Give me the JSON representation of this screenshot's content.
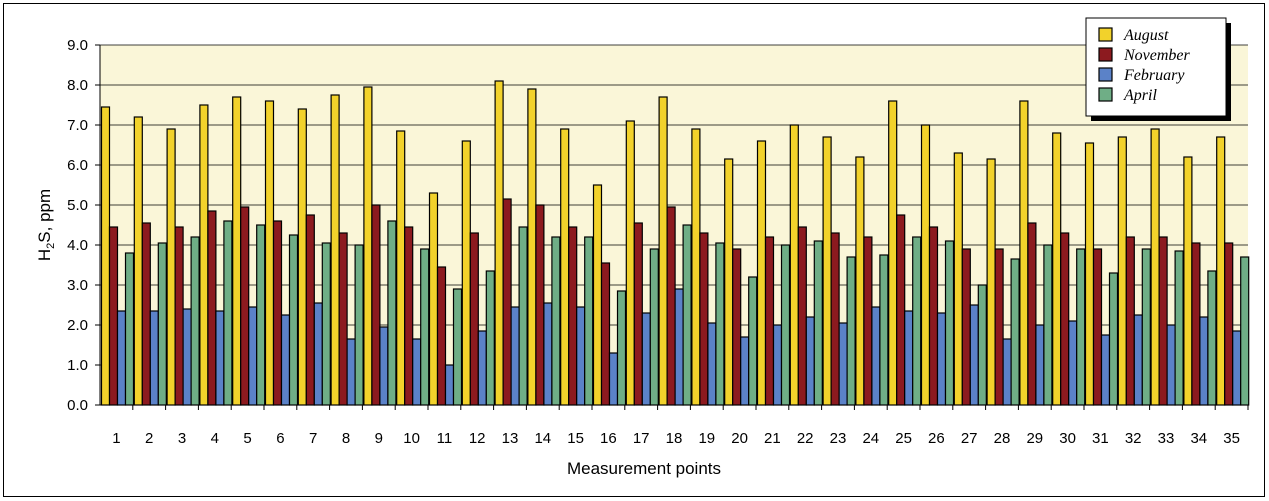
{
  "chart_data": {
    "type": "bar",
    "xlabel": "Measurement points",
    "ylabel_main": "H",
    "ylabel_sub": "2",
    "ylabel_rest": "S, ppm",
    "ylim": [
      0,
      9
    ],
    "yticks": [
      "0.0",
      "1.0",
      "2.0",
      "3.0",
      "4.0",
      "5.0",
      "6.0",
      "7.0",
      "8.0",
      "9.0"
    ],
    "grid": true,
    "legend_position": "top-right",
    "categories": [
      "1",
      "2",
      "3",
      "4",
      "5",
      "6",
      "7",
      "8",
      "9",
      "10",
      "11",
      "12",
      "13",
      "14",
      "15",
      "16",
      "17",
      "18",
      "19",
      "20",
      "21",
      "22",
      "23",
      "24",
      "25",
      "26",
      "27",
      "28",
      "29",
      "30",
      "31",
      "32",
      "33",
      "34",
      "35"
    ],
    "series": [
      {
        "name": "August",
        "color": "#f2d22b",
        "values": [
          7.45,
          7.2,
          6.9,
          7.5,
          7.7,
          7.6,
          7.4,
          7.75,
          7.95,
          6.85,
          5.3,
          6.6,
          8.1,
          7.9,
          6.9,
          5.5,
          7.1,
          7.7,
          6.9,
          6.15,
          6.6,
          7.0,
          6.7,
          6.2,
          7.6,
          7.0,
          6.3,
          6.15,
          7.6,
          6.8,
          6.55,
          6.7,
          6.9,
          6.2,
          6.7
        ]
      },
      {
        "name": "November",
        "color": "#8c1a1f",
        "values": [
          4.45,
          4.55,
          4.45,
          4.85,
          4.95,
          4.6,
          4.75,
          4.3,
          5.0,
          4.45,
          3.45,
          4.3,
          5.15,
          5.0,
          4.45,
          3.55,
          4.55,
          4.95,
          4.3,
          3.9,
          4.2,
          4.45,
          4.3,
          4.2,
          4.75,
          4.45,
          3.9,
          3.9,
          4.55,
          4.3,
          3.9,
          4.2,
          4.2,
          4.05,
          4.05
        ]
      },
      {
        "name": "February",
        "color": "#5b82c8",
        "values": [
          2.35,
          2.35,
          2.4,
          2.35,
          2.45,
          2.25,
          2.55,
          1.65,
          1.95,
          1.65,
          1.0,
          1.85,
          2.45,
          2.55,
          2.45,
          1.3,
          2.3,
          2.9,
          2.05,
          1.7,
          2.0,
          2.2,
          2.05,
          2.45,
          2.35,
          2.3,
          2.5,
          1.65,
          2.0,
          2.1,
          1.75,
          2.25,
          2.0,
          2.2,
          1.85
        ]
      },
      {
        "name": "April",
        "color": "#6fae86",
        "values": [
          3.8,
          4.05,
          4.2,
          4.6,
          4.5,
          4.25,
          4.05,
          4.0,
          4.6,
          3.9,
          2.9,
          3.35,
          4.45,
          4.2,
          4.2,
          2.85,
          3.9,
          4.5,
          4.05,
          3.2,
          4.0,
          4.1,
          3.7,
          3.75,
          4.2,
          4.1,
          3.0,
          3.65,
          4.0,
          3.9,
          3.3,
          3.9,
          3.85,
          3.35,
          3.7
        ]
      }
    ],
    "colors": {
      "plot_background": "#faf6d8",
      "gridline": "#000000",
      "bar_outline": "#000000"
    }
  }
}
